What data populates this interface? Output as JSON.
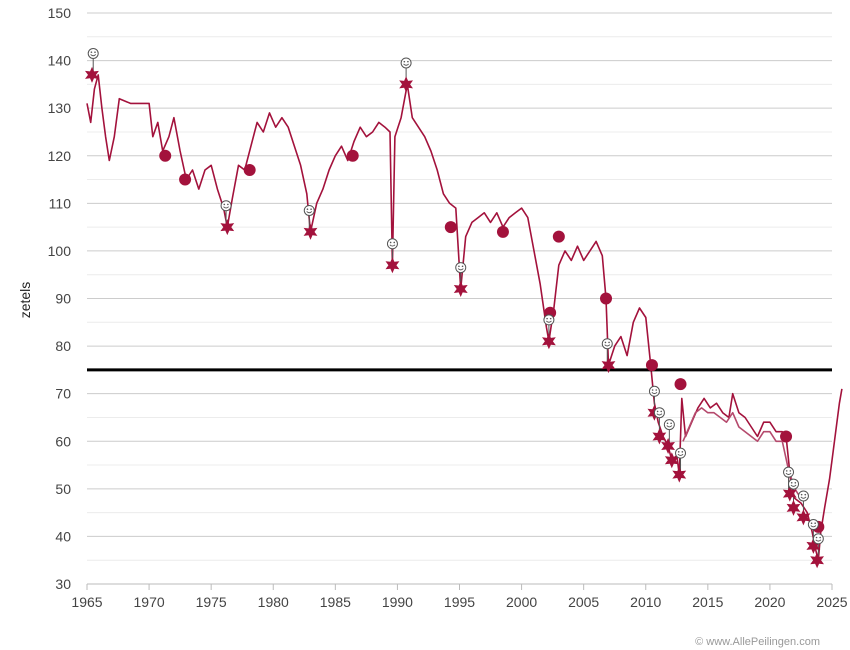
{
  "chart_data": {
    "type": "line",
    "ylabel": "zetels",
    "xlim": [
      1965,
      2025
    ],
    "ylim": [
      30,
      150
    ],
    "x_ticks": [
      "1965",
      "1970",
      "1975",
      "1980",
      "1985",
      "1990",
      "1995",
      "2000",
      "2005",
      "2010",
      "2015",
      "2020",
      "2025"
    ],
    "y_ticks": [
      "30",
      "40",
      "50",
      "60",
      "70",
      "80",
      "90",
      "100",
      "110",
      "120",
      "130",
      "140",
      "150"
    ],
    "grid": "horizontal",
    "reference_line": {
      "y": 75
    },
    "series": [
      {
        "color": "#a3123c",
        "points": [
          [
            1965.0,
            131
          ],
          [
            1965.3,
            127
          ],
          [
            1965.6,
            134
          ],
          [
            1965.9,
            137
          ],
          [
            1966.2,
            130
          ],
          [
            1966.5,
            124
          ],
          [
            1966.8,
            119
          ],
          [
            1967.2,
            124
          ],
          [
            1967.6,
            132
          ],
          [
            1968.5,
            131
          ],
          [
            1969.5,
            131
          ],
          [
            1970.0,
            131
          ],
          [
            1970.3,
            124
          ],
          [
            1970.7,
            127
          ],
          [
            1971.1,
            121
          ],
          [
            1971.6,
            124
          ],
          [
            1972.0,
            128
          ],
          [
            1972.5,
            121
          ],
          [
            1973.0,
            115
          ],
          [
            1973.5,
            117
          ],
          [
            1974.0,
            113
          ],
          [
            1974.5,
            117
          ],
          [
            1975.0,
            118
          ],
          [
            1975.5,
            113
          ],
          [
            1976.0,
            109
          ],
          [
            1976.3,
            105
          ],
          [
            1976.7,
            111
          ],
          [
            1977.2,
            118
          ],
          [
            1977.7,
            117
          ],
          [
            1978.2,
            122
          ],
          [
            1978.7,
            127
          ],
          [
            1979.2,
            125
          ],
          [
            1979.7,
            129
          ],
          [
            1980.2,
            126
          ],
          [
            1980.7,
            128
          ],
          [
            1981.2,
            126
          ],
          [
            1981.7,
            122
          ],
          [
            1982.2,
            118
          ],
          [
            1982.7,
            112
          ],
          [
            1983.0,
            104
          ],
          [
            1983.5,
            110
          ],
          [
            1984.0,
            113
          ],
          [
            1984.5,
            117
          ],
          [
            1985.0,
            120
          ],
          [
            1985.5,
            122
          ],
          [
            1986.0,
            119
          ],
          [
            1986.5,
            123
          ],
          [
            1987.0,
            126
          ],
          [
            1987.5,
            124
          ],
          [
            1988.0,
            125
          ],
          [
            1988.5,
            127
          ],
          [
            1989.0,
            126
          ],
          [
            1989.4,
            125
          ],
          [
            1989.6,
            97
          ],
          [
            1989.8,
            124
          ],
          [
            1990.3,
            128
          ],
          [
            1990.8,
            135
          ],
          [
            1991.2,
            128
          ],
          [
            1991.7,
            126
          ],
          [
            1992.2,
            124
          ],
          [
            1992.7,
            121
          ],
          [
            1993.2,
            117
          ],
          [
            1993.7,
            112
          ],
          [
            1994.2,
            110
          ],
          [
            1994.7,
            109
          ],
          [
            1995.1,
            92
          ],
          [
            1995.5,
            103
          ],
          [
            1996.0,
            106
          ],
          [
            1996.5,
            107
          ],
          [
            1997.0,
            108
          ],
          [
            1997.5,
            106
          ],
          [
            1998.0,
            108
          ],
          [
            1998.5,
            105
          ],
          [
            1999.0,
            107
          ],
          [
            1999.5,
            108
          ],
          [
            2000.0,
            109
          ],
          [
            2000.5,
            107
          ],
          [
            2001.0,
            100
          ],
          [
            2001.5,
            93
          ],
          [
            2002.0,
            84
          ],
          [
            2002.2,
            81
          ],
          [
            2002.6,
            88
          ],
          [
            2003.0,
            97
          ],
          [
            2003.5,
            100
          ],
          [
            2004.0,
            98
          ],
          [
            2004.5,
            101
          ],
          [
            2005.0,
            98
          ],
          [
            2005.5,
            100
          ],
          [
            2006.0,
            102
          ],
          [
            2006.5,
            99
          ],
          [
            2006.8,
            90
          ],
          [
            2007.0,
            76
          ],
          [
            2007.5,
            80
          ],
          [
            2008.0,
            82
          ],
          [
            2008.5,
            78
          ],
          [
            2009.0,
            85
          ],
          [
            2009.5,
            88
          ],
          [
            2010.0,
            86
          ],
          [
            2010.4,
            76
          ],
          [
            2010.7,
            68
          ],
          [
            2011.0,
            64
          ],
          [
            2011.4,
            61
          ],
          [
            2011.8,
            59
          ],
          [
            2012.1,
            56
          ],
          [
            2012.5,
            57
          ],
          [
            2012.7,
            53
          ],
          [
            2012.9,
            69
          ],
          [
            2013.2,
            61
          ],
          [
            2013.7,
            64
          ],
          [
            2014.2,
            67
          ],
          [
            2014.7,
            69
          ],
          [
            2015.2,
            67
          ],
          [
            2015.7,
            68
          ],
          [
            2016.2,
            66
          ],
          [
            2016.7,
            65
          ],
          [
            2017.0,
            70
          ],
          [
            2017.5,
            66
          ],
          [
            2018.0,
            65
          ],
          [
            2018.5,
            63
          ],
          [
            2019.0,
            61
          ],
          [
            2019.5,
            64
          ],
          [
            2020.0,
            64
          ],
          [
            2020.5,
            62
          ],
          [
            2021.0,
            62
          ],
          [
            2021.3,
            61
          ],
          [
            2021.7,
            51
          ],
          [
            2022.0,
            48
          ],
          [
            2022.5,
            47
          ],
          [
            2023.0,
            45
          ],
          [
            2023.4,
            41
          ],
          [
            2023.7,
            37
          ],
          [
            2023.9,
            35
          ],
          [
            2024.1,
            41
          ],
          [
            2024.4,
            46
          ],
          [
            2024.8,
            52
          ],
          [
            2025.0,
            56
          ],
          [
            2025.3,
            62
          ],
          [
            2025.6,
            68
          ],
          [
            2025.8,
            71
          ]
        ]
      },
      {
        "color": "#b54a6d",
        "points": [
          [
            2013.0,
            60
          ],
          [
            2013.5,
            63
          ],
          [
            2014.0,
            66
          ],
          [
            2014.5,
            67
          ],
          [
            2015.0,
            66
          ],
          [
            2015.5,
            66
          ],
          [
            2016.0,
            65
          ],
          [
            2016.5,
            64
          ],
          [
            2017.0,
            66
          ],
          [
            2017.5,
            63
          ],
          [
            2018.0,
            62
          ],
          [
            2018.5,
            61
          ],
          [
            2019.0,
            60
          ],
          [
            2019.5,
            62
          ],
          [
            2020.0,
            62
          ],
          [
            2020.5,
            60
          ],
          [
            2021.0,
            60
          ],
          [
            2021.5,
            54
          ],
          [
            2022.0,
            50
          ],
          [
            2022.5,
            48
          ]
        ]
      }
    ],
    "markers": {
      "circles": [
        [
          1971.3,
          120
        ],
        [
          1972.9,
          115
        ],
        [
          1978.1,
          117
        ],
        [
          1986.4,
          120
        ],
        [
          1994.3,
          105
        ],
        [
          1998.5,
          104
        ],
        [
          2002.3,
          87
        ],
        [
          2003.0,
          103
        ],
        [
          2006.8,
          90
        ],
        [
          2010.5,
          76
        ],
        [
          2012.8,
          72
        ],
        [
          2021.3,
          61
        ],
        [
          2023.9,
          42
        ]
      ],
      "stars": [
        [
          1965.4,
          137
        ],
        [
          1976.3,
          105
        ],
        [
          1983.0,
          104
        ],
        [
          1989.6,
          97
        ],
        [
          1990.7,
          135
        ],
        [
          1995.1,
          92
        ],
        [
          2002.2,
          81
        ],
        [
          2007.0,
          76
        ],
        [
          2010.7,
          66
        ],
        [
          2011.1,
          61
        ],
        [
          2011.8,
          59
        ],
        [
          2012.1,
          56
        ],
        [
          2012.7,
          53
        ],
        [
          2021.6,
          49
        ],
        [
          2021.9,
          46
        ],
        [
          2022.7,
          44
        ],
        [
          2023.5,
          38
        ],
        [
          2023.8,
          35
        ]
      ],
      "smileys": [
        [
          1965.5,
          141.5
        ],
        [
          1976.2,
          109.5
        ],
        [
          1982.9,
          108.5
        ],
        [
          1989.6,
          101.5
        ],
        [
          1990.7,
          139.5
        ],
        [
          1995.1,
          96.5
        ],
        [
          2002.2,
          85.5
        ],
        [
          2006.9,
          80.5
        ],
        [
          2010.7,
          70.5
        ],
        [
          2011.1,
          66
        ],
        [
          2011.9,
          63.5
        ],
        [
          2012.8,
          57.5
        ],
        [
          2021.5,
          53.5
        ],
        [
          2021.9,
          51
        ],
        [
          2022.7,
          48.5
        ],
        [
          2023.5,
          42.5
        ],
        [
          2023.9,
          39.5
        ]
      ],
      "colors": {
        "filled": "#a3123c",
        "smiley_stroke": "#555555"
      }
    }
  },
  "credit": "© www.AllePeilingen.com"
}
